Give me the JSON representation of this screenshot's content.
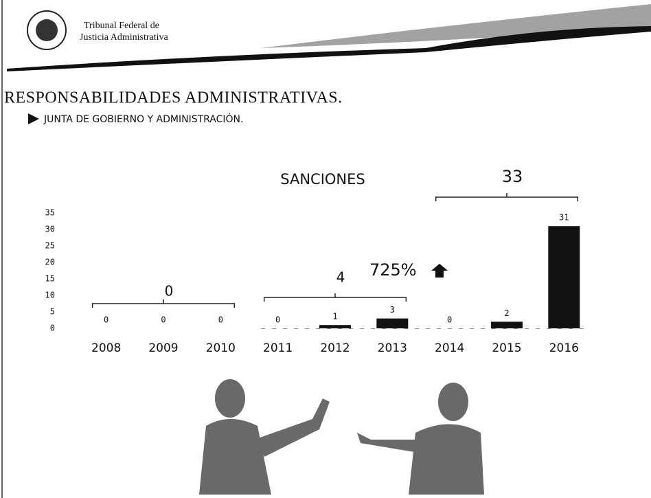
{
  "header": {
    "line1": "Tribunal Federal de",
    "line2": "Justicia Administrativa"
  },
  "section": {
    "title": "RESPONSABILIDADES ADMINISTRATIVAS.",
    "bullet": "JUNTA DE GOBIERNO Y ADMINISTRACIÓN."
  },
  "chart_data": {
    "type": "bar",
    "title": "SANCIONES",
    "categories": [
      "2008",
      "2009",
      "2010",
      "2011",
      "2012",
      "2013",
      "2014",
      "2015",
      "2016"
    ],
    "values": [
      0,
      0,
      0,
      0,
      1,
      3,
      0,
      2,
      31
    ],
    "color": "#111111",
    "ylim": [
      0,
      35
    ],
    "yticks": [
      0,
      5,
      10,
      15,
      20,
      25,
      30,
      35
    ],
    "group_labels": [
      "0",
      "4",
      "33"
    ],
    "growth_label": "725%"
  }
}
